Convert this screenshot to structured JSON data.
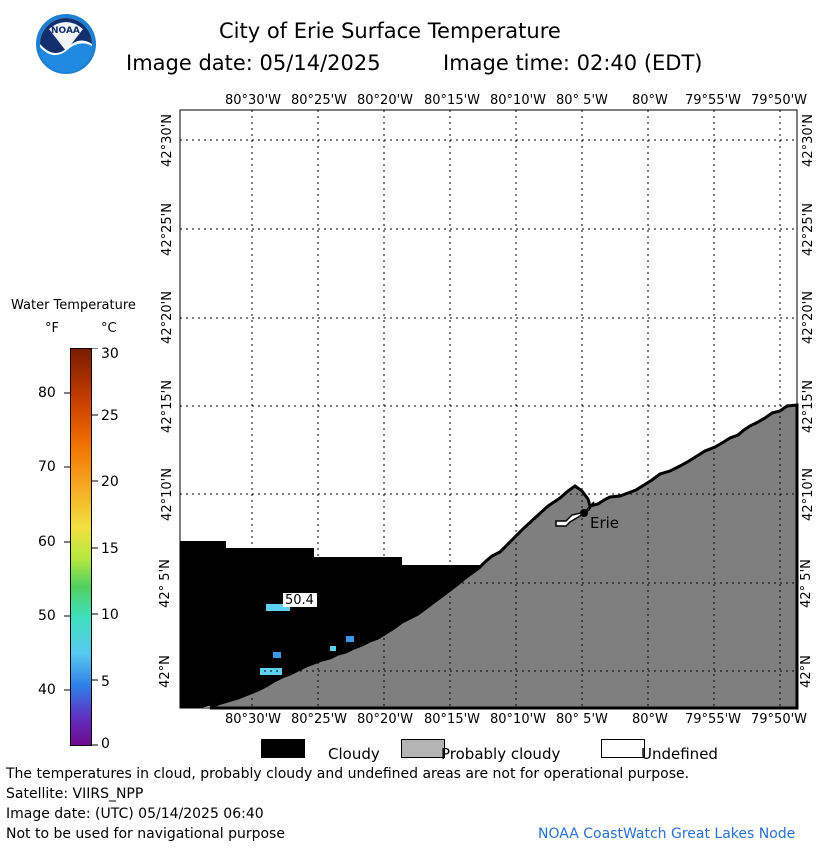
{
  "header": {
    "title": "City of Erie Surface Temperature",
    "image_date_label": "Image date: 05/14/2025",
    "image_time_label": "Image time: 02:40 (EDT)",
    "logo_text": "NOAA"
  },
  "map": {
    "lon_labels": [
      "80°30'W",
      "80°25'W",
      "80°20'W",
      "80°15'W",
      "80°10'W",
      "80° 5'W",
      "80°W",
      "79°55'W",
      "79°50'W"
    ],
    "lat_labels": [
      "42°30'N",
      "42°25'N",
      "42°20'N",
      "42°15'N",
      "42°10'N",
      "42° 5'N",
      "42°N"
    ],
    "city_label": "Erie",
    "temp_label": "50.4",
    "colors": {
      "cloudy": "#000000",
      "probably_cloudy": "#7f7f7f",
      "undefined": "#ffffff",
      "water_cyan": "#5fd0f0",
      "water_blue": "#3a9ae8"
    }
  },
  "colorbar": {
    "title": "Water Temperature",
    "unit_f": "°F",
    "unit_c": "°C",
    "f_ticks": [
      "80",
      "70",
      "60",
      "50",
      "40"
    ],
    "c_ticks": [
      "30",
      "25",
      "20",
      "15",
      "10",
      "5",
      "0"
    ]
  },
  "legend": {
    "cloudy": "Cloudy",
    "probably_cloudy": "Probably cloudy",
    "undefined": "Undefined"
  },
  "footer": {
    "disclaimer": "The temperatures in cloud, probably cloudy and undefined areas are not for operational purpose.",
    "satellite": "Satellite: VIIRS_NPP",
    "image_date_utc": "Image date: (UTC) 05/14/2025  06:40",
    "nav_warning": "Not to be used for navigational purpose",
    "credit": "NOAA CoastWatch Great Lakes Node"
  }
}
